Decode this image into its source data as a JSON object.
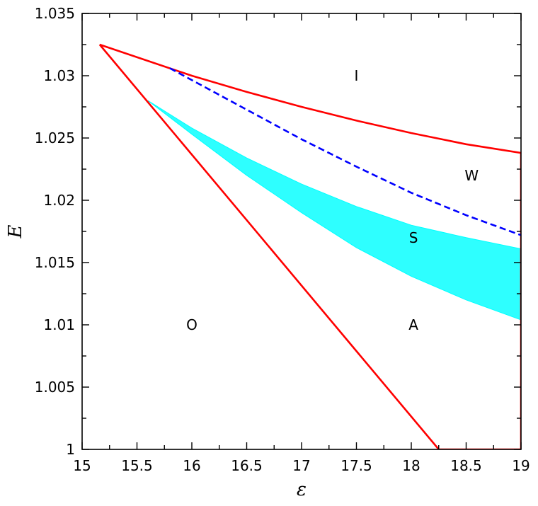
{
  "chart_data": {
    "type": "line",
    "xlabel": "ε",
    "ylabel": "E",
    "xlim": [
      15,
      19
    ],
    "ylim": [
      1.0,
      1.035
    ],
    "x_ticks": [
      15,
      15.5,
      16,
      16.5,
      17,
      17.5,
      18,
      18.5,
      19
    ],
    "x_tick_labels": [
      "15",
      "15.5",
      "16",
      "16.5",
      "17",
      "17.5",
      "18",
      "18.5",
      "19"
    ],
    "y_ticks": [
      1.0,
      1.005,
      1.01,
      1.015,
      1.02,
      1.025,
      1.03,
      1.035
    ],
    "y_tick_labels": [
      "1",
      "1.005",
      "1.01",
      "1.015",
      "1.02",
      "1.025",
      "1.03",
      "1.035"
    ],
    "grid": false,
    "series": [
      {
        "kind": "line",
        "color": "#ff0000",
        "style": "solid",
        "points": [
          [
            15.16,
            1.0325
          ],
          [
            16.0,
            1.03
          ],
          [
            16.5,
            1.0287
          ],
          [
            17.0,
            1.0275
          ],
          [
            17.5,
            1.0264
          ],
          [
            18.0,
            1.0254
          ],
          [
            18.5,
            1.0245
          ],
          [
            19.0,
            1.0238
          ]
        ]
      },
      {
        "kind": "line",
        "color": "#ff0000",
        "style": "solid",
        "points": [
          [
            15.16,
            1.0325
          ],
          [
            18.25,
            1.0
          ],
          [
            19.0,
            1.0
          ],
          [
            19.0,
            1.0238
          ]
        ]
      },
      {
        "kind": "line",
        "color": "#0000ff",
        "style": "dashed",
        "points": [
          [
            15.8,
            1.0306
          ],
          [
            16.2,
            1.0287
          ],
          [
            16.6,
            1.0268
          ],
          [
            17.0,
            1.0249
          ],
          [
            17.5,
            1.0227
          ],
          [
            18.0,
            1.0206
          ],
          [
            18.5,
            1.0188
          ],
          [
            19.0,
            1.0172
          ]
        ]
      },
      {
        "kind": "band",
        "color": "#00ffff",
        "upper": [
          [
            15.6,
            1.028
          ],
          [
            16.0,
            1.0258
          ],
          [
            16.5,
            1.0234
          ],
          [
            17.0,
            1.0213
          ],
          [
            17.5,
            1.0195
          ],
          [
            18.0,
            1.018
          ],
          [
            18.5,
            1.017
          ],
          [
            19.0,
            1.0161
          ]
        ],
        "lower": [
          [
            15.6,
            1.028
          ],
          [
            16.0,
            1.0253
          ],
          [
            16.5,
            1.022
          ],
          [
            17.0,
            1.019
          ],
          [
            17.5,
            1.0162
          ],
          [
            18.0,
            1.0139
          ],
          [
            18.5,
            1.012
          ],
          [
            19.0,
            1.0104
          ]
        ]
      }
    ],
    "annotations": [
      {
        "text": "I",
        "x": 17.5,
        "y": 1.03
      },
      {
        "text": "W",
        "x": 18.55,
        "y": 1.022
      },
      {
        "text": "S",
        "x": 18.02,
        "y": 1.017
      },
      {
        "text": "O",
        "x": 16.0,
        "y": 1.01
      },
      {
        "text": "A",
        "x": 18.02,
        "y": 1.01
      }
    ]
  }
}
